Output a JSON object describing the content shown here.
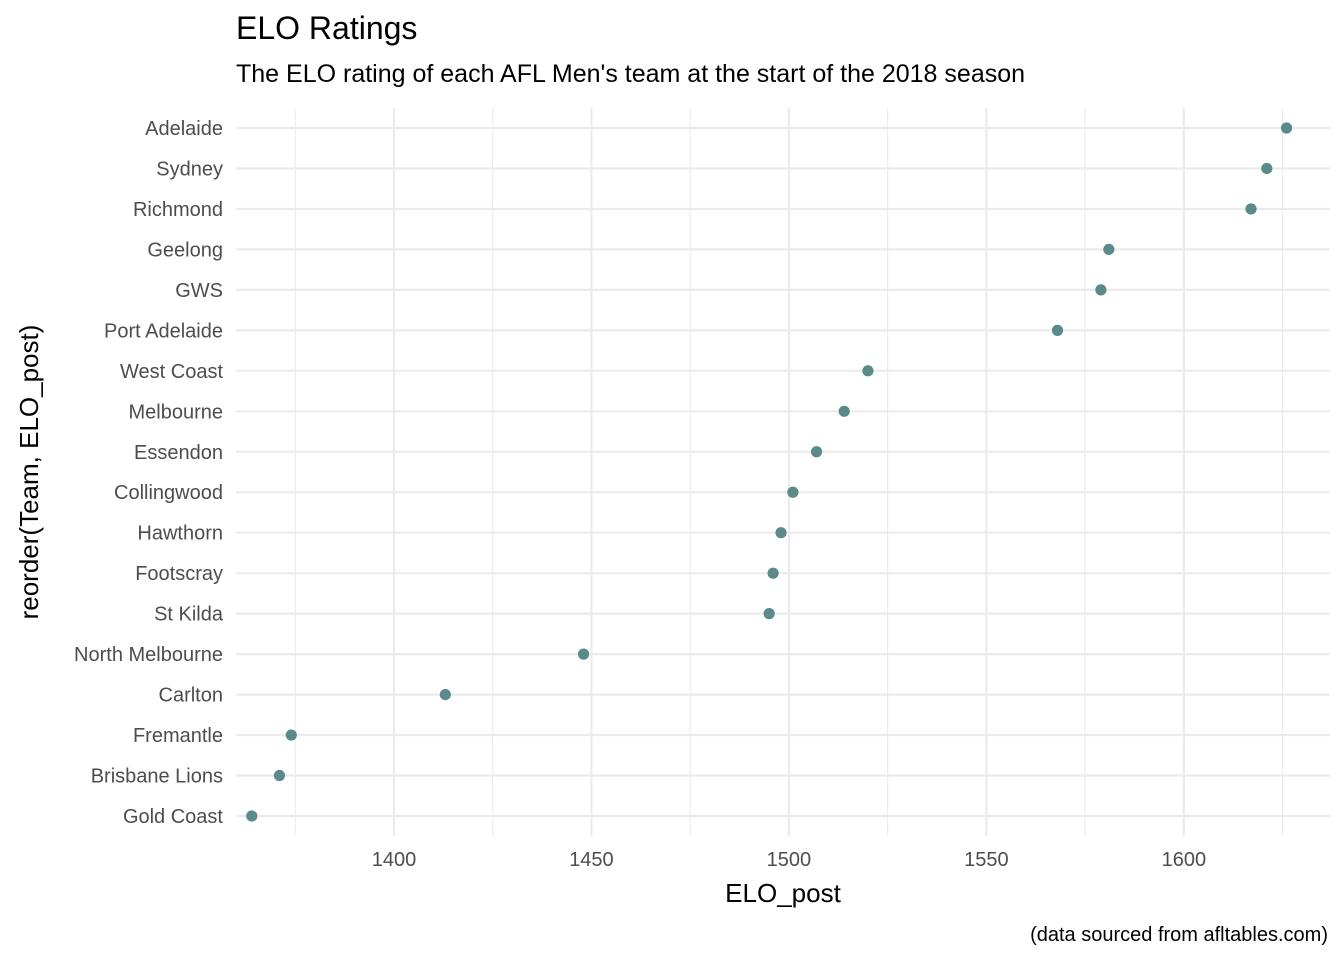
{
  "chart_data": {
    "type": "scatter",
    "title": "ELO Ratings",
    "subtitle": "The ELO rating of each AFL Men's team at the start of the 2018 season",
    "xlabel": "ELO_post",
    "ylabel": "reorder(Team, ELO_post)",
    "caption": "(data sourced from afltables.com)",
    "xlim": [
      1360,
      1637
    ],
    "x_ticks": [
      1400,
      1450,
      1500,
      1550,
      1600
    ],
    "x_tick_labels": [
      "1400",
      "1450",
      "1500",
      "1550",
      "1600"
    ],
    "grid": true,
    "legend": "none",
    "point_color": "#5b8a8a",
    "categories": [
      "Adelaide",
      "Sydney",
      "Richmond",
      "Geelong",
      "GWS",
      "Port Adelaide",
      "West Coast",
      "Melbourne",
      "Essendon",
      "Collingwood",
      "Hawthorn",
      "Footscray",
      "St Kilda",
      "North Melbourne",
      "Carlton",
      "Fremantle",
      "Brisbane Lions",
      "Gold Coast"
    ],
    "values": [
      1626,
      1621,
      1617,
      1581,
      1579,
      1568,
      1520,
      1514,
      1507,
      1501,
      1498,
      1496,
      1495,
      1448,
      1413,
      1374,
      1371,
      1364
    ]
  }
}
